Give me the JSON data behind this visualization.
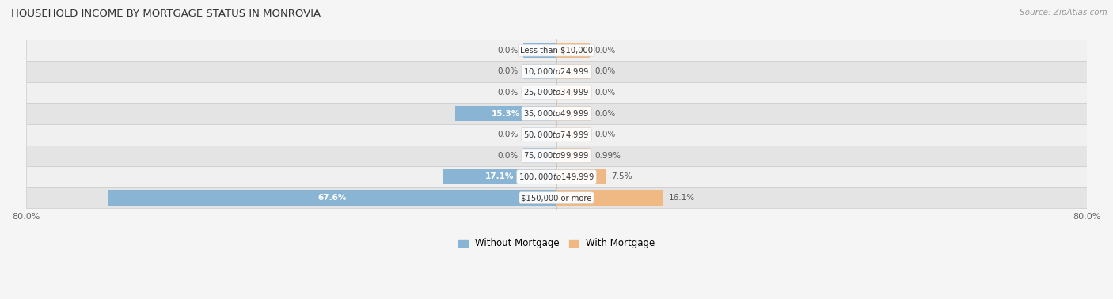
{
  "title": "HOUSEHOLD INCOME BY MORTGAGE STATUS IN MONROVIA",
  "source": "Source: ZipAtlas.com",
  "categories": [
    "Less than $10,000",
    "$10,000 to $24,999",
    "$25,000 to $34,999",
    "$35,000 to $49,999",
    "$50,000 to $74,999",
    "$75,000 to $99,999",
    "$100,000 to $149,999",
    "$150,000 or more"
  ],
  "without_mortgage": [
    0.0,
    0.0,
    0.0,
    15.3,
    0.0,
    0.0,
    17.1,
    67.6
  ],
  "with_mortgage": [
    0.0,
    0.0,
    0.0,
    0.0,
    0.0,
    0.99,
    7.5,
    16.1
  ],
  "without_labels": [
    "0.0%",
    "0.0%",
    "0.0%",
    "15.3%",
    "0.0%",
    "0.0%",
    "17.1%",
    "67.6%"
  ],
  "with_labels": [
    "0.0%",
    "0.0%",
    "0.0%",
    "0.0%",
    "0.0%",
    "0.99%",
    "7.5%",
    "16.1%"
  ],
  "color_without": "#8ab4d4",
  "color_with": "#f0b882",
  "xlim_left": -80.0,
  "xlim_right": 80.0,
  "min_bar_width": 5.0,
  "legend_labels": [
    "Without Mortgage",
    "With Mortgage"
  ],
  "bar_height": 0.72,
  "row_bg_light": "#f0f0f0",
  "row_bg_dark": "#e4e4e4",
  "row_border": "#cccccc",
  "bg_color": "#f5f5f5"
}
